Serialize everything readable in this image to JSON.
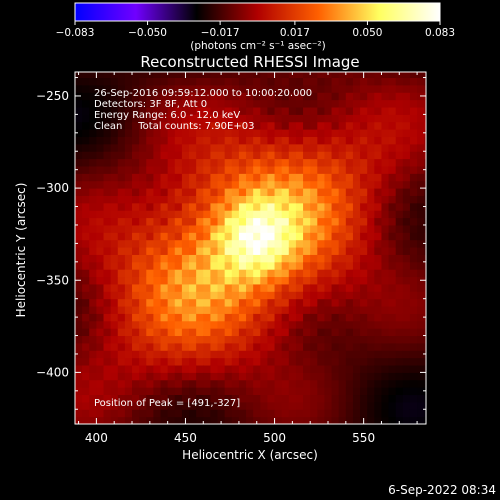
{
  "chart_data": {
    "type": "heatmap",
    "title": "Reconstructed RHESSI Image",
    "xlabel": "Heliocentric X (arcsec)",
    "ylabel": "Heliocentric Y (arcsec)",
    "xlim": [
      388,
      585
    ],
    "ylim": [
      -428,
      -237
    ],
    "x_ticks": [
      400,
      450,
      500,
      550
    ],
    "x_tick_labels": [
      "400",
      "450",
      "500",
      "550"
    ],
    "y_ticks": [
      -400,
      -350,
      -300,
      -250
    ],
    "y_tick_labels": [
      "−400",
      "−350",
      "−300",
      "−250"
    ],
    "colorbar": {
      "range": [
        -0.083,
        0.083
      ],
      "ticks": [
        -0.083,
        -0.05,
        -0.017,
        0.017,
        0.05,
        0.083
      ],
      "tick_labels": [
        "−0.083",
        "−0.050",
        "−0.017",
        "0.017",
        "0.050",
        "0.083"
      ],
      "unit_label": "(photons cm⁻² s⁻¹ asec⁻²)",
      "colors": [
        "#0000ff",
        "#7000ff",
        "#000000",
        "#b00000",
        "#ff6000",
        "#ffff60",
        "#ffffff"
      ]
    },
    "annotations": [
      "26-Sep-2016 09:59:12.000 to 10:00:20.000",
      "Detectors: 3F 8F, Att 0",
      "Energy Range: 6.0 - 12.0 keV",
      "Clean     Total counts: 7.90E+03"
    ],
    "peak_label": "Position of Peak = [491,-327]",
    "peak_position": [
      491,
      -327
    ],
    "source": {
      "center": [
        481,
        -330
      ],
      "angle_deg": -35,
      "sigma_major": 62,
      "sigma_minor": 38,
      "peak_value": 0.083,
      "background_value": -0.02
    },
    "pixel_size_arcsec": 4,
    "footer_text": "6-Sep-2022 08:34"
  }
}
